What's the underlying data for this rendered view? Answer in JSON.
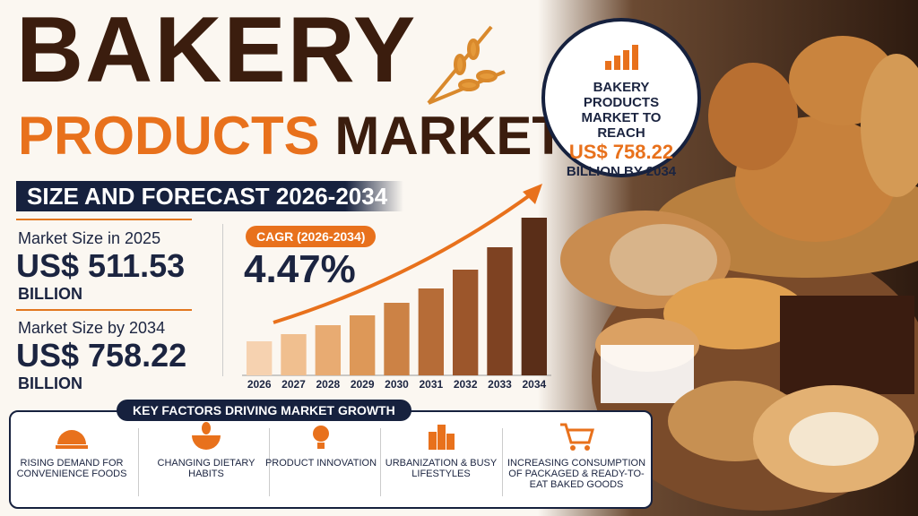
{
  "header": {
    "title_line1": "BAKERY",
    "title_line2a": "PRODUCTS",
    "title_line2b": "MARKET",
    "subtitle": "SIZE AND FORECAST 2026-2034"
  },
  "stats": [
    {
      "label": "Market Size in 2025",
      "value": "US$ 511.53",
      "unit": "BILLION"
    },
    {
      "label": "Market Size by 2034",
      "value": "US$ 758.22",
      "unit": "BILLION"
    }
  ],
  "cagr": {
    "label": "CAGR (2026-2034)",
    "value": "4.47%"
  },
  "badge": {
    "line1": "BAKERY PRODUCTS MARKET TO REACH",
    "value": "US$ 758.22",
    "line2": "BILLION BY 2034"
  },
  "chart_data": {
    "type": "bar",
    "categories": [
      "2026",
      "2027",
      "2028",
      "2029",
      "2030",
      "2031",
      "2032",
      "2033",
      "2034"
    ],
    "values": [
      38,
      46,
      56,
      67,
      81,
      97,
      118,
      143,
      176
    ],
    "colors": [
      "#f6d2b0",
      "#f0bf8f",
      "#e8ab72",
      "#dd9858",
      "#cc8245",
      "#b66c37",
      "#9c562b",
      "#7e4222",
      "#5a2e18"
    ],
    "ylim": [
      0,
      180
    ]
  },
  "factors": {
    "title": "KEY FACTORS DRIVING MARKET GROWTH",
    "items": [
      "RISING DEMAND FOR CONVENIENCE FOODS",
      "CHANGING DIETARY HABITS",
      "PRODUCT INNOVATION",
      "URBANIZATION & BUSY LIFESTYLES",
      "INCREASING CONSUMPTION OF PACKAGED & READY-TO-EAT BAKED GOODS"
    ]
  }
}
